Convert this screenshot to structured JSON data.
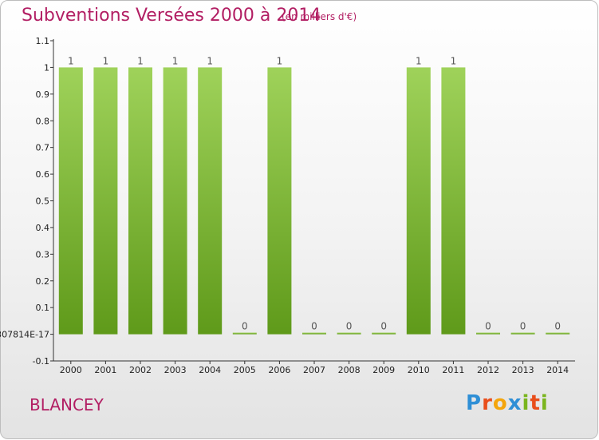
{
  "title": "Subventions Versées 2000 à 2014",
  "subtitle": "(en milliers d'€)",
  "commune": "BLANCEY",
  "logo": {
    "letters": [
      "P",
      "r",
      "o",
      "x",
      "i",
      "t",
      "i"
    ],
    "colors": [
      "#2e8fd6",
      "#e94e1b",
      "#f4a50c",
      "#2e8fd6",
      "#7ab51d",
      "#e94e1b",
      "#7ab51d"
    ]
  },
  "colors": {
    "title": "#b21e63",
    "bar_top": "#9fd25a",
    "bar_bottom": "#5f9a1a"
  },
  "chart_data": {
    "type": "bar",
    "title": "Subventions Versées 2000 à 2014",
    "subtitle": "(en milliers d'€)",
    "categories": [
      "2000",
      "2001",
      "2002",
      "2003",
      "2004",
      "2005",
      "2006",
      "2007",
      "2008",
      "2009",
      "2010",
      "2011",
      "2012",
      "2013",
      "2014"
    ],
    "values": [
      1,
      1,
      1,
      1,
      1,
      0,
      1,
      0,
      0,
      0,
      1,
      1,
      0,
      0,
      0
    ],
    "value_labels": [
      "1",
      "1",
      "1",
      "1",
      "1",
      "0",
      "1",
      "0",
      "0",
      "0",
      "1",
      "1",
      "0",
      "0",
      "0"
    ],
    "yticks": [
      -0.1,
      0,
      0.1,
      0.2,
      0.3,
      0.4,
      0.5,
      0.6,
      0.7,
      0.8,
      0.9,
      1,
      1.1
    ],
    "ytick_labels": [
      "-0.1",
      "307814E-17",
      "0.1",
      "0.2",
      "0.3",
      "0.4",
      "0.5",
      "0.6",
      "0.7",
      "0.8",
      "0.9",
      "1",
      "1.1"
    ],
    "ylim": [
      -0.1,
      1.1
    ],
    "xlabel": "",
    "ylabel": "",
    "grid": false,
    "legend": "none"
  }
}
